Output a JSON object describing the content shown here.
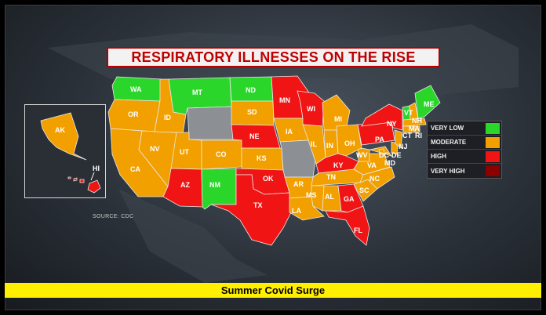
{
  "title": "RESPIRATORY ILLNESSES ON THE RISE",
  "source": "SOURCE: CDC",
  "banner": "Summer Covid Surge",
  "colors": {
    "very_low": "#2bd62b",
    "moderate": "#f2a000",
    "high": "#f01414",
    "very_high": "#8c0000",
    "no_data": "#8c8f94"
  },
  "legend": [
    {
      "label": "VERY LOW",
      "color": "#2bd62b"
    },
    {
      "label": "MODERATE",
      "color": "#f2a000"
    },
    {
      "label": "HIGH",
      "color": "#f01414"
    },
    {
      "label": "VERY HIGH",
      "color": "#8c0000"
    }
  ],
  "states": {
    "WA": "very_low",
    "MT": "very_low",
    "ND": "very_low",
    "NM": "very_low",
    "VT": "very_low",
    "ME": "very_low",
    "OR": "moderate",
    "ID": "moderate",
    "NV": "moderate",
    "CA": "moderate",
    "UT": "moderate",
    "CO": "moderate",
    "SD": "moderate",
    "IA": "moderate",
    "KS": "moderate",
    "MI": "moderate",
    "IL": "moderate",
    "IN": "moderate",
    "OH": "moderate",
    "WV": "moderate",
    "VA": "moderate",
    "NC": "moderate",
    "SC": "moderate",
    "TN": "moderate",
    "MS": "moderate",
    "AL": "moderate",
    "AR": "moderate",
    "LA": "moderate",
    "AK": "moderate",
    "NH": "moderate",
    "MA": "moderate",
    "CT": "moderate",
    "RI": "moderate",
    "NJ": "moderate",
    "DC": "moderate",
    "DE": "moderate",
    "MD": "moderate",
    "AZ": "high",
    "NE": "high",
    "OK": "high",
    "TX": "high",
    "MN": "high",
    "WI": "high",
    "KY": "high",
    "GA": "high",
    "FL": "high",
    "PA": "high",
    "NY": "high",
    "HI": "high",
    "WY": "no_data",
    "MO": "no_data"
  }
}
